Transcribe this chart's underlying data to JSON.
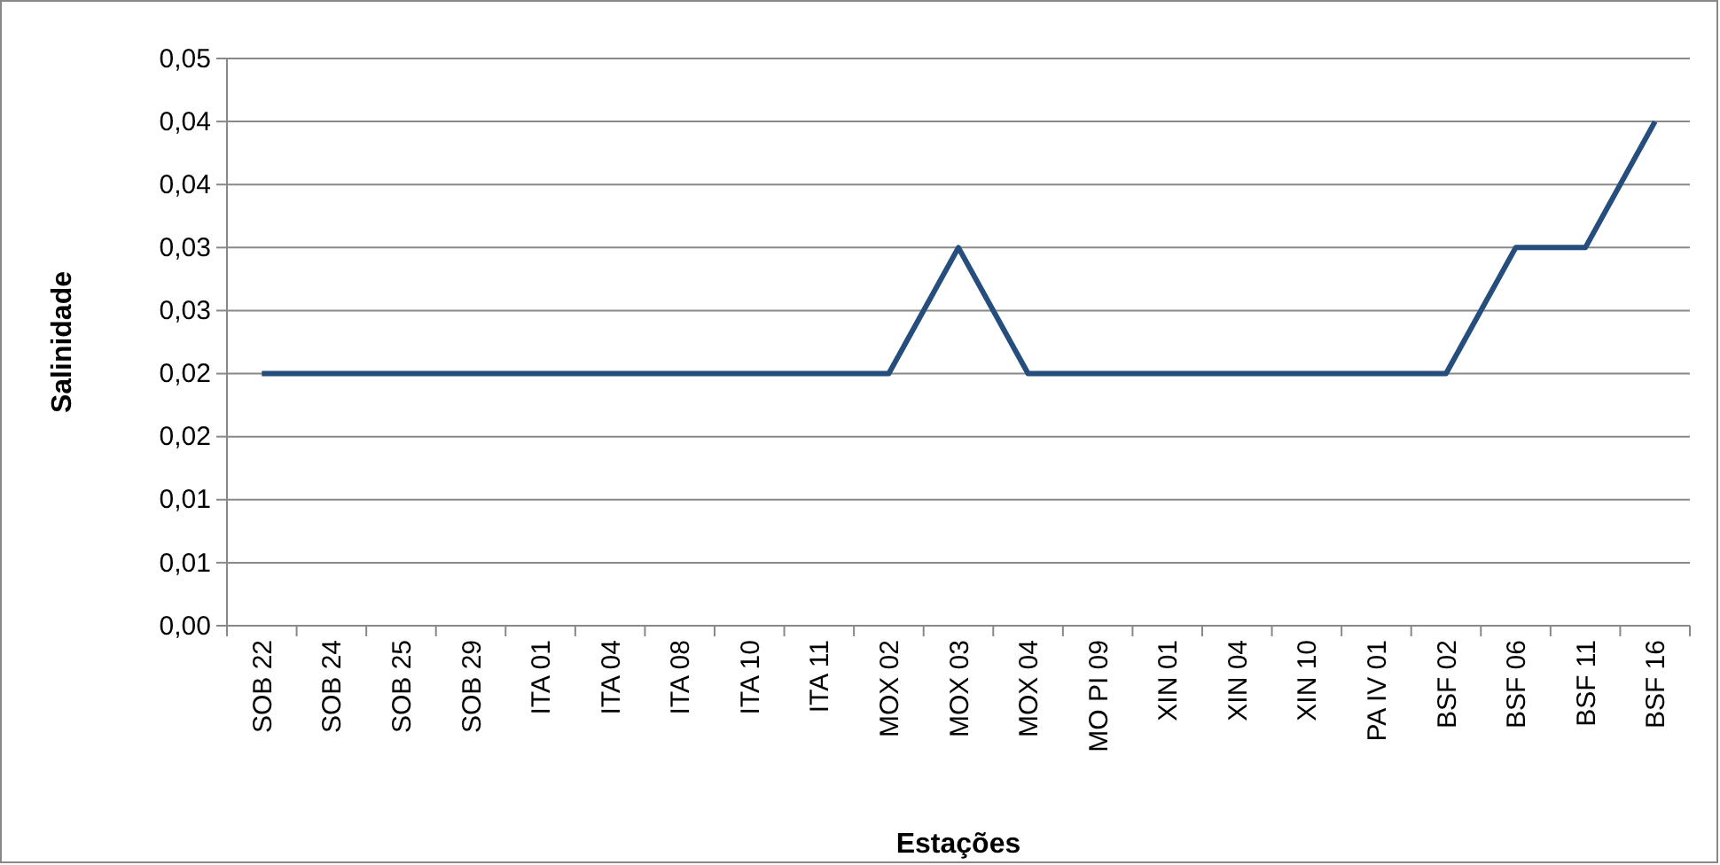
{
  "chart_data": {
    "type": "line",
    "xlabel": "Estações",
    "ylabel": "Salinidade",
    "categories": [
      "SOB 22",
      "SOB 24",
      "SOB 25",
      "SOB 29",
      "ITA 01",
      "ITA 04",
      "ITA 08",
      "ITA 10",
      "ITA 11",
      "MOX 02",
      "MOX 03",
      "MOX 04",
      "MO PI 09",
      "XIN 01",
      "XIN 04",
      "XIN 10",
      "PA IV 01",
      "BSF 02",
      "BSF 06",
      "BSF 11",
      "BSF 16"
    ],
    "series": [
      {
        "color": "#254e7e",
        "values": [
          0.02,
          0.02,
          0.02,
          0.02,
          0.02,
          0.02,
          0.02,
          0.02,
          0.02,
          0.02,
          0.03,
          0.02,
          0.02,
          0.02,
          0.02,
          0.02,
          0.02,
          0.02,
          0.03,
          0.03,
          0.04
        ]
      }
    ],
    "ylim": [
      0,
      0.045
    ],
    "yticks": [
      {
        "value": 0,
        "label": "0,00"
      },
      {
        "value": 0.005,
        "label": "0,01"
      },
      {
        "value": 0.01,
        "label": "0,01"
      },
      {
        "value": 0.015,
        "label": "0,02"
      },
      {
        "value": 0.02,
        "label": "0,02"
      },
      {
        "value": 0.025,
        "label": "0,03"
      },
      {
        "value": 0.03,
        "label": "0,03"
      },
      {
        "value": 0.035,
        "label": "0,04"
      },
      {
        "value": 0.04,
        "label": "0,04"
      },
      {
        "value": 0.045,
        "label": "0,05"
      }
    ],
    "grid": "y",
    "marker": "none",
    "line_style": "solid"
  }
}
